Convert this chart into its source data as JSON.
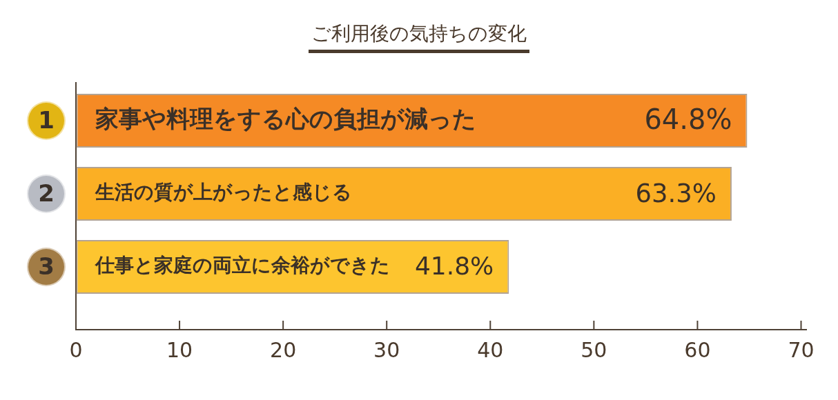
{
  "chart_data": {
    "type": "bar",
    "orientation": "horizontal",
    "title": "ご利用後の気持ちの変化",
    "categories": [
      "家事や料理をする心の負担が減った",
      "生活の質が上がったと感じる",
      "仕事と家庭の両立に余裕ができた"
    ],
    "values": [
      64.8,
      63.3,
      41.8
    ],
    "colors": [
      "#f58a25",
      "#fbaf24",
      "#fdc52f"
    ],
    "value_labels": [
      "64.8%",
      "63.3%",
      "41.8%"
    ],
    "xlim": [
      0,
      70.5
    ],
    "xticks": [
      0,
      10,
      20,
      30,
      40,
      50,
      60,
      70
    ],
    "grid": false,
    "legend": false,
    "annotations": [
      "1",
      "2",
      "3"
    ]
  }
}
